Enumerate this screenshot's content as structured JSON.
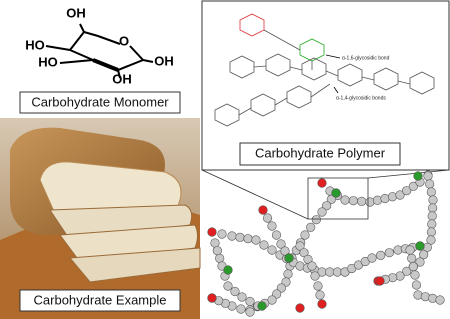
{
  "monomer": {
    "label": "Carbohydrate Monomer",
    "atoms": [
      "OH",
      "HO",
      "O",
      "HO",
      "OH",
      "OH"
    ]
  },
  "example": {
    "label": "Carbohydrate Example"
  },
  "polymer": {
    "label": "Carbohydrate Polymer",
    "annotations": [
      "α-1,6-glycosidic bond",
      "α-1,4-glycosidic bonds"
    ]
  }
}
